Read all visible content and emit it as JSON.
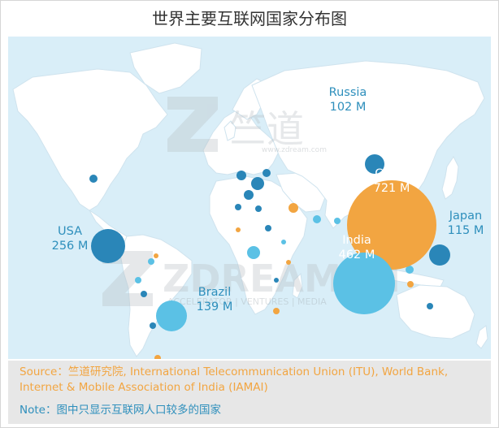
{
  "title": "世界主要互联网国家分布图",
  "colors": {
    "map_bg": "#d9eef8",
    "land": "#ffffff",
    "blue_dark": "#2a86b8",
    "blue_light": "#5bc1e5",
    "orange": "#f2a541",
    "footer_bg": "#e7e7e7",
    "label_blue": "#2e8fbc"
  },
  "labelled_countries": [
    {
      "name": "China",
      "value": "721 M",
      "color": "orange"
    },
    {
      "name": "India",
      "value": "462 M",
      "color": "blue_light"
    },
    {
      "name": "USA",
      "value": "256 M",
      "color": "blue_dark"
    },
    {
      "name": "Brazil",
      "value": "139 M",
      "color": "blue_light"
    },
    {
      "name": "Japan",
      "value": "115 M",
      "color": "blue_dark"
    },
    {
      "name": "Russia",
      "value": "102 M",
      "color": "blue_dark"
    }
  ],
  "watermark": {
    "top_text": "竺道",
    "top_url": "www.zdream.com",
    "bottom_text": "ZDREAM.IN",
    "bottom_subtext": "ACCELERATOR | VENTURES | MEDIA"
  },
  "footer": {
    "source": "Source：竺道研究院, International Telecommunication Union (ITU), World Bank, Internet & Mobile Association of India (IAMAI)",
    "note": "Note：图中只显示互联网人口较多的国家"
  }
}
